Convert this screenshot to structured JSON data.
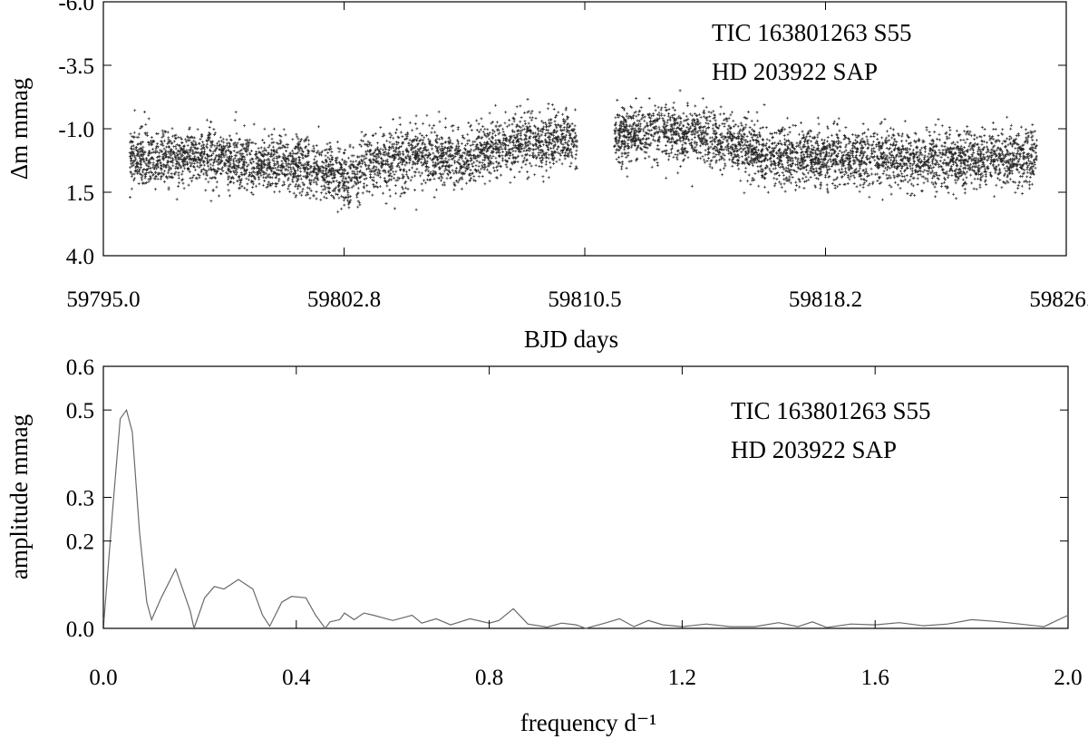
{
  "chart_data": [
    {
      "type": "scatter",
      "xlabel": "BJD days",
      "ylabel": "Δm mmag",
      "xlim": [
        59795.0,
        59826.0
      ],
      "ylim": [
        4.0,
        -6.0
      ],
      "y_inverted": true,
      "xticks": [
        59795.0,
        59802.75,
        59810.5,
        59818.25,
        59826.0
      ],
      "xtick_labels": [
        "59795.0",
        "59802.8",
        "59810.5",
        "59818.2",
        "59826.0"
      ],
      "yticks": [
        -6.0,
        -3.5,
        -1.0,
        1.5,
        4.0
      ],
      "ytick_labels": [
        "-6.0",
        "-3.5",
        "-1.0",
        "1.5",
        "4.0"
      ],
      "annotation_lines": [
        "TIC 163801263 S55",
        "HD 203922 SAP"
      ],
      "grid": false,
      "marker": "+",
      "color": "#000000",
      "segments": [
        {
          "x_start": 59795.85,
          "x_end": 59810.25
        },
        {
          "x_start": 59811.45,
          "x_end": 59825.05
        }
      ],
      "trend_points": [
        {
          "x": 59795.9,
          "y": 0.2
        },
        {
          "x": 59798.0,
          "y": 0.05
        },
        {
          "x": 59800.0,
          "y": 0.3
        },
        {
          "x": 59801.5,
          "y": 0.4
        },
        {
          "x": 59802.5,
          "y": 0.8
        },
        {
          "x": 59802.9,
          "y": 1.1
        },
        {
          "x": 59803.5,
          "y": 0.3
        },
        {
          "x": 59805.0,
          "y": 0.1
        },
        {
          "x": 59806.5,
          "y": 0.2
        },
        {
          "x": 59808.0,
          "y": -0.4
        },
        {
          "x": 59810.2,
          "y": -0.6
        },
        {
          "x": 59811.5,
          "y": -0.7
        },
        {
          "x": 59813.0,
          "y": -0.9
        },
        {
          "x": 59815.0,
          "y": -0.5
        },
        {
          "x": 59816.5,
          "y": 0.0
        },
        {
          "x": 59818.0,
          "y": 0.1
        },
        {
          "x": 59820.0,
          "y": 0.15
        },
        {
          "x": 59822.0,
          "y": 0.25
        },
        {
          "x": 59825.0,
          "y": 0.1
        }
      ],
      "scatter_sd": 0.55
    },
    {
      "type": "line",
      "xlabel": "frequency d⁻¹",
      "ylabel": "amplitude mmag",
      "xlim": [
        0.0,
        2.0
      ],
      "ylim": [
        0.0,
        0.6
      ],
      "xticks": [
        0.0,
        0.4,
        0.8,
        1.2,
        1.6,
        2.0
      ],
      "xtick_labels": [
        "0.0",
        "0.4",
        "0.8",
        "1.2",
        "1.6",
        "2.0"
      ],
      "yticks": [
        0.0,
        0.2,
        0.3,
        0.5,
        0.6
      ],
      "ytick_labels": [
        "0.0",
        "0.2",
        "0.3",
        "0.5",
        "0.6"
      ],
      "annotation_lines": [
        "TIC 163801263 S55",
        "HD 203922 SAP"
      ],
      "grid": false,
      "color": "#6a6a6a",
      "series": [
        {
          "x": [
            0.0,
            0.02,
            0.035,
            0.048,
            0.06,
            0.075,
            0.09,
            0.1,
            0.12,
            0.15,
            0.18,
            0.188,
            0.21,
            0.23,
            0.25,
            0.28,
            0.31,
            0.33,
            0.345,
            0.37,
            0.39,
            0.42,
            0.44,
            0.46,
            0.47,
            0.49,
            0.5,
            0.52,
            0.54,
            0.56,
            0.6,
            0.64,
            0.66,
            0.69,
            0.72,
            0.76,
            0.8,
            0.82,
            0.85,
            0.88,
            0.92,
            0.95,
            0.98,
            1.0,
            1.04,
            1.07,
            1.1,
            1.13,
            1.16,
            1.2,
            1.25,
            1.3,
            1.35,
            1.4,
            1.44,
            1.47,
            1.5,
            1.55,
            1.6,
            1.65,
            1.7,
            1.75,
            1.8,
            1.85,
            1.9,
            1.95,
            2.0
          ],
          "y": [
            0.0,
            0.28,
            0.48,
            0.5,
            0.45,
            0.22,
            0.06,
            0.02,
            0.07,
            0.136,
            0.04,
            0.0,
            0.07,
            0.096,
            0.09,
            0.112,
            0.09,
            0.03,
            0.005,
            0.06,
            0.073,
            0.07,
            0.03,
            0.0,
            0.015,
            0.02,
            0.035,
            0.02,
            0.035,
            0.03,
            0.018,
            0.03,
            0.012,
            0.022,
            0.008,
            0.022,
            0.012,
            0.018,
            0.045,
            0.01,
            0.003,
            0.012,
            0.008,
            0.0,
            0.012,
            0.022,
            0.004,
            0.018,
            0.008,
            0.004,
            0.01,
            0.004,
            0.004,
            0.013,
            0.004,
            0.015,
            0.002,
            0.01,
            0.008,
            0.013,
            0.006,
            0.01,
            0.02,
            0.016,
            0.01,
            0.004,
            0.03
          ]
        }
      ]
    }
  ]
}
